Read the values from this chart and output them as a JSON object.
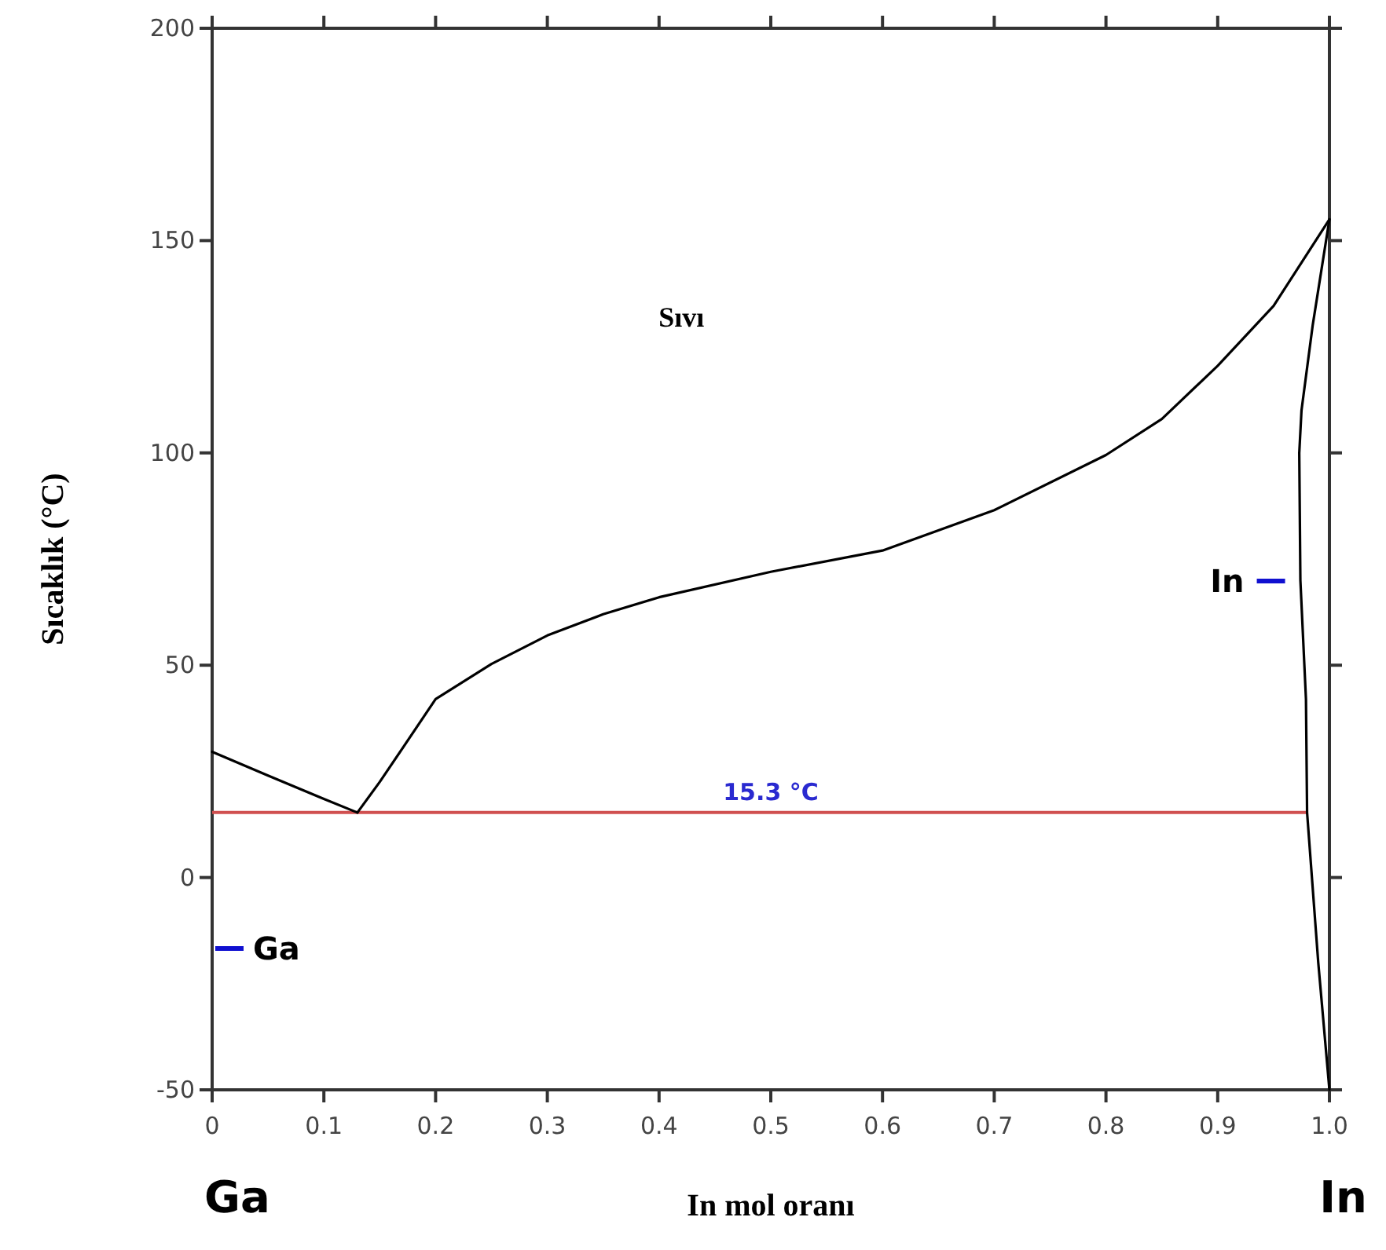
{
  "chart_data": {
    "type": "line",
    "xlabel": "In mol oranı",
    "ylabel": "Sıcaklık (°C)",
    "xlim": [
      0,
      1
    ],
    "ylim": [
      -50,
      200
    ],
    "xticks": [
      0,
      0.1,
      0.2,
      0.3,
      0.4,
      0.5,
      0.6,
      0.7,
      0.8,
      0.9,
      {
        "value": 1,
        "label": "1.0"
      }
    ],
    "yticks": [
      -50,
      0,
      50,
      100,
      150,
      200
    ],
    "series": [
      {
        "color": "#000000",
        "x": [
          0,
          0.05,
          0.1,
          0.13
        ],
        "values": [
          29.6,
          24,
          18.5,
          15.3
        ]
      },
      {
        "color": "#000000",
        "x": [
          0.13,
          0.15,
          0.2,
          0.25,
          0.3,
          0.35,
          0.4,
          0.5,
          0.6,
          0.7,
          0.8,
          0.85,
          0.9,
          0.95,
          1.0
        ],
        "values": [
          15.3,
          22.5,
          42,
          50.3,
          57,
          62,
          66,
          72,
          77,
          86.5,
          99.5,
          108,
          120.5,
          134.6,
          155
        ]
      },
      {
        "color": "#000000",
        "x": [
          1.0,
          0.985,
          0.975,
          0.973,
          0.974,
          0.979,
          0.98,
          0.99,
          1.0
        ],
        "values": [
          155,
          130,
          110,
          100,
          70,
          42,
          15.3,
          -20,
          -50
        ]
      }
    ],
    "ref_lines": [
      {
        "axis": "y",
        "value": 15.3,
        "label": "15.3 °C",
        "color": "#d05050"
      }
    ],
    "annotations": [
      "Sıvı",
      "Ga",
      "In",
      "Ga",
      "In"
    ],
    "marker": "none",
    "line_style": "solid",
    "grid": false
  }
}
